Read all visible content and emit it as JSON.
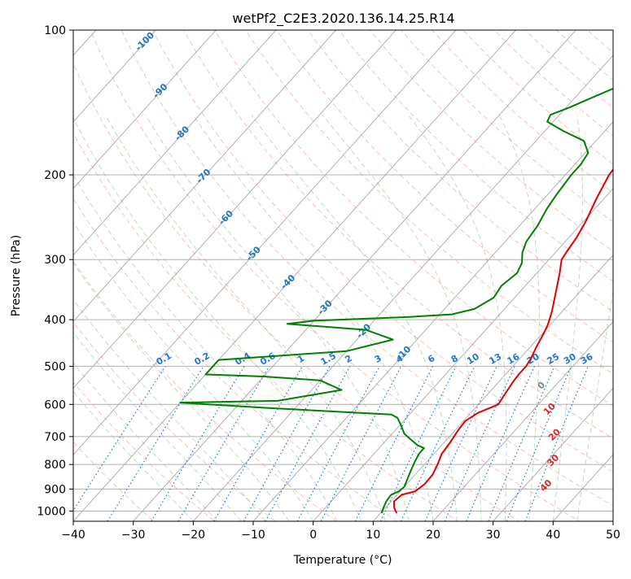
{
  "chart_data": {
    "type": "skew-t",
    "title": "wetPf2_C2E3.2020.136.14.25.R14",
    "xlabel": "Temperature (°C)",
    "ylabel": "Pressure (hPa)",
    "xlim": [
      -40,
      50
    ],
    "ylim": [
      1050,
      100
    ],
    "y_scale": "log",
    "grid": true,
    "x_ticks": [
      "−40",
      "−30",
      "−20",
      "−10",
      "0",
      "10",
      "20",
      "30",
      "40",
      "50"
    ],
    "y_ticks": [
      "100",
      "200",
      "300",
      "400",
      "500",
      "600",
      "700",
      "800",
      "900",
      "1000"
    ],
    "series": [
      {
        "color": "#e00000",
        "points": [
          [
            12.7,
            1010
          ],
          [
            11.5,
            985
          ],
          [
            10.5,
            955
          ],
          [
            10.8,
            925
          ],
          [
            12.5,
            910
          ],
          [
            13.0,
            880
          ],
          [
            12.9,
            840
          ],
          [
            12.2,
            800
          ],
          [
            11.3,
            760
          ],
          [
            11.0,
            720
          ],
          [
            10.5,
            680
          ],
          [
            10.3,
            650
          ],
          [
            11.2,
            625
          ],
          [
            13.3,
            600
          ],
          [
            13.0,
            580
          ],
          [
            12.7,
            560
          ],
          [
            12.4,
            540
          ],
          [
            12.2,
            520
          ],
          [
            12.2,
            500
          ],
          [
            11.8,
            480
          ],
          [
            11.0,
            455
          ],
          [
            10.3,
            430
          ],
          [
            9.6,
            410
          ],
          [
            8.3,
            385
          ],
          [
            6.0,
            350
          ],
          [
            3.8,
            320
          ],
          [
            2.1,
            300
          ],
          [
            1.8,
            290
          ],
          [
            1.3,
            270
          ],
          [
            0.4,
            250
          ],
          [
            -1.2,
            225
          ],
          [
            -2.7,
            200
          ],
          [
            -3.1,
            185
          ],
          [
            -2.0,
            175
          ],
          [
            2.7,
            165
          ],
          [
            9.5,
            155
          ],
          [
            12.3,
            145
          ],
          [
            14.5,
            135
          ],
          [
            15.6,
            125
          ],
          [
            17.1,
            118
          ],
          [
            19.5,
            110
          ],
          [
            21.5,
            100
          ]
        ]
      },
      {
        "color": "#008000",
        "points": [
          [
            10.2,
            1010
          ],
          [
            9.7,
            985
          ],
          [
            9.2,
            955
          ],
          [
            9.0,
            925
          ],
          [
            9.8,
            910
          ],
          [
            10.0,
            890
          ],
          [
            9.6,
            870
          ],
          [
            8.8,
            830
          ],
          [
            8.0,
            790
          ],
          [
            7.5,
            760
          ],
          [
            7.5,
            740
          ],
          [
            6.0,
            730
          ],
          [
            4.0,
            710
          ],
          [
            2.0,
            690
          ],
          [
            0.0,
            660
          ],
          [
            -1.5,
            640
          ],
          [
            -3.0,
            630
          ],
          [
            -25.0,
            610
          ],
          [
            -35.0,
            600
          ],
          [
            -40.0,
            595
          ],
          [
            -24.0,
            590
          ],
          [
            -15.0,
            560
          ],
          [
            -20.0,
            535
          ],
          [
            -30.0,
            525
          ],
          [
            -40.0,
            520
          ],
          [
            -40.0,
            485
          ],
          [
            -20.0,
            465
          ],
          [
            -14.0,
            440
          ],
          [
            -20.0,
            420
          ],
          [
            -34.0,
            408
          ],
          [
            -30.0,
            402
          ],
          [
            -15.0,
            395
          ],
          [
            -8.0,
            390
          ],
          [
            -5.0,
            380
          ],
          [
            -3.5,
            360
          ],
          [
            -4.0,
            340
          ],
          [
            -3.3,
            320
          ],
          [
            -4.0,
            305
          ],
          [
            -5.5,
            290
          ],
          [
            -6.5,
            275
          ],
          [
            -7.0,
            255
          ],
          [
            -8.0,
            235
          ],
          [
            -8.5,
            220
          ],
          [
            -9.0,
            200
          ],
          [
            -9.0,
            190
          ],
          [
            -9.5,
            180
          ],
          [
            -12.0,
            170
          ],
          [
            -17.0,
            162
          ],
          [
            -21.0,
            155
          ],
          [
            -21.5,
            150
          ],
          [
            -19.5,
            145
          ],
          [
            -16.0,
            135
          ],
          [
            -12.0,
            125
          ],
          [
            -6.0,
            115
          ],
          [
            -1.0,
            108
          ],
          [
            3.0,
            100
          ]
        ]
      }
    ],
    "isotherm_labels": [
      "-100",
      "-90",
      "-80",
      "-70",
      "-60",
      "-50",
      "-40",
      "-30",
      "-20",
      "-10"
    ],
    "mixing_ratio_labels": [
      "0.1",
      "0.2",
      "0.4",
      "0.6",
      "1",
      "1.5",
      "2",
      "3",
      "4",
      "6",
      "8",
      "10",
      "13",
      "16",
      "20",
      "25",
      "30",
      "36"
    ],
    "moist_adiabat_labels": [
      "0",
      "10",
      "20",
      "30",
      "40"
    ],
    "colors": {
      "temperature": "#e00000",
      "dewpoint": "#008000",
      "grid": "#b0b0b0",
      "dry_adiabat": "#fa8072",
      "moist_adiabat": "#6ab46a",
      "mixing_ratio": "#1f77d4",
      "isotherm_label": "#1f77b4",
      "moist_label": "#d62728"
    }
  }
}
